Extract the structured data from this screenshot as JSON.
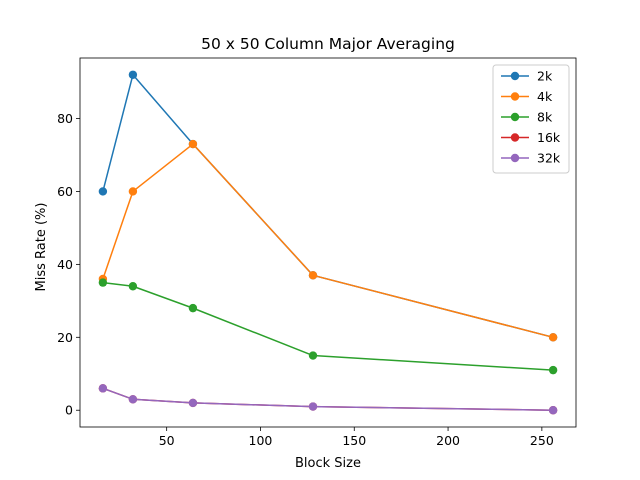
{
  "chart_data": {
    "type": "line",
    "title": "50 x 50 Column Major Averaging",
    "xlabel": "Block Size",
    "ylabel": "Miss Rate (%)",
    "xlim": [
      3.8,
      268.2
    ],
    "ylim": [
      -4.6,
      96.6
    ],
    "xticks": [
      50,
      100,
      150,
      200,
      250
    ],
    "yticks": [
      0,
      20,
      40,
      60,
      80
    ],
    "grid": false,
    "legend_position": "top-right",
    "x": [
      16,
      32,
      64,
      128,
      256
    ],
    "series": [
      {
        "name": "2k",
        "color": "#1f77b4",
        "values": [
          60,
          92,
          73,
          37,
          20
        ]
      },
      {
        "name": "4k",
        "color": "#ff7f0e",
        "values": [
          36,
          60,
          73,
          37,
          20
        ]
      },
      {
        "name": "8k",
        "color": "#2ca02c",
        "values": [
          35,
          34,
          28,
          15,
          11
        ]
      },
      {
        "name": "16k",
        "color": "#d62728",
        "values": [
          6,
          3,
          2,
          1,
          0
        ]
      },
      {
        "name": "32k",
        "color": "#9467bd",
        "values": [
          6,
          3,
          2,
          1,
          0
        ]
      }
    ]
  }
}
